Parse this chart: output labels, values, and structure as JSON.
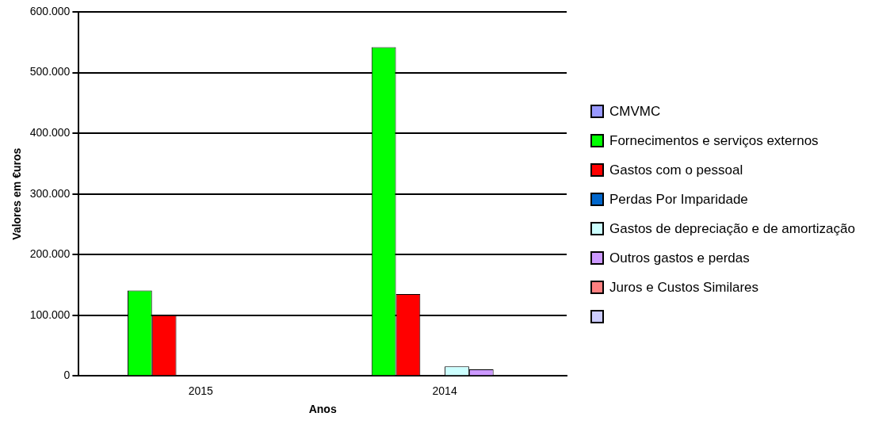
{
  "chart_data": {
    "type": "bar",
    "xlabel": "Anos",
    "ylabel": "Valores em €uros",
    "categories": [
      "2015",
      "2014"
    ],
    "series": [
      {
        "name": "CMVMC",
        "color": "#9999ff",
        "values": [
          0,
          0
        ]
      },
      {
        "name": "Fornecimentos e serviços externos",
        "color": "#00ff00",
        "values": [
          141000,
          542000
        ]
      },
      {
        "name": "Gastos com o pessoal",
        "color": "#ff0000",
        "values": [
          100000,
          135000
        ]
      },
      {
        "name": "Perdas Por Imparidade",
        "color": "#0066cc",
        "values": [
          0,
          0
        ]
      },
      {
        "name": "Gastos de depreciação e de amortização",
        "color": "#ccffff",
        "values": [
          0,
          16000
        ]
      },
      {
        "name": "Outros gastos e perdas",
        "color": "#cc99ff",
        "values": [
          0,
          11000
        ]
      },
      {
        "name": "Juros e Custos Similares",
        "color": "#ff8080",
        "values": [
          0,
          0
        ]
      },
      {
        "color": "#ccccff",
        "values": [
          null,
          null
        ]
      }
    ],
    "ylim": [
      0,
      600000
    ],
    "yticks": [
      {
        "value": 0,
        "label": "0"
      },
      {
        "value": 100000,
        "label": "100.000"
      },
      {
        "value": 200000,
        "label": "200.000"
      },
      {
        "value": 300000,
        "label": "300.000"
      },
      {
        "value": 400000,
        "label": "400.000"
      },
      {
        "value": 500000,
        "label": "500.000"
      },
      {
        "value": 600000,
        "label": "600.000"
      }
    ],
    "grid": "y",
    "legend": "right"
  }
}
